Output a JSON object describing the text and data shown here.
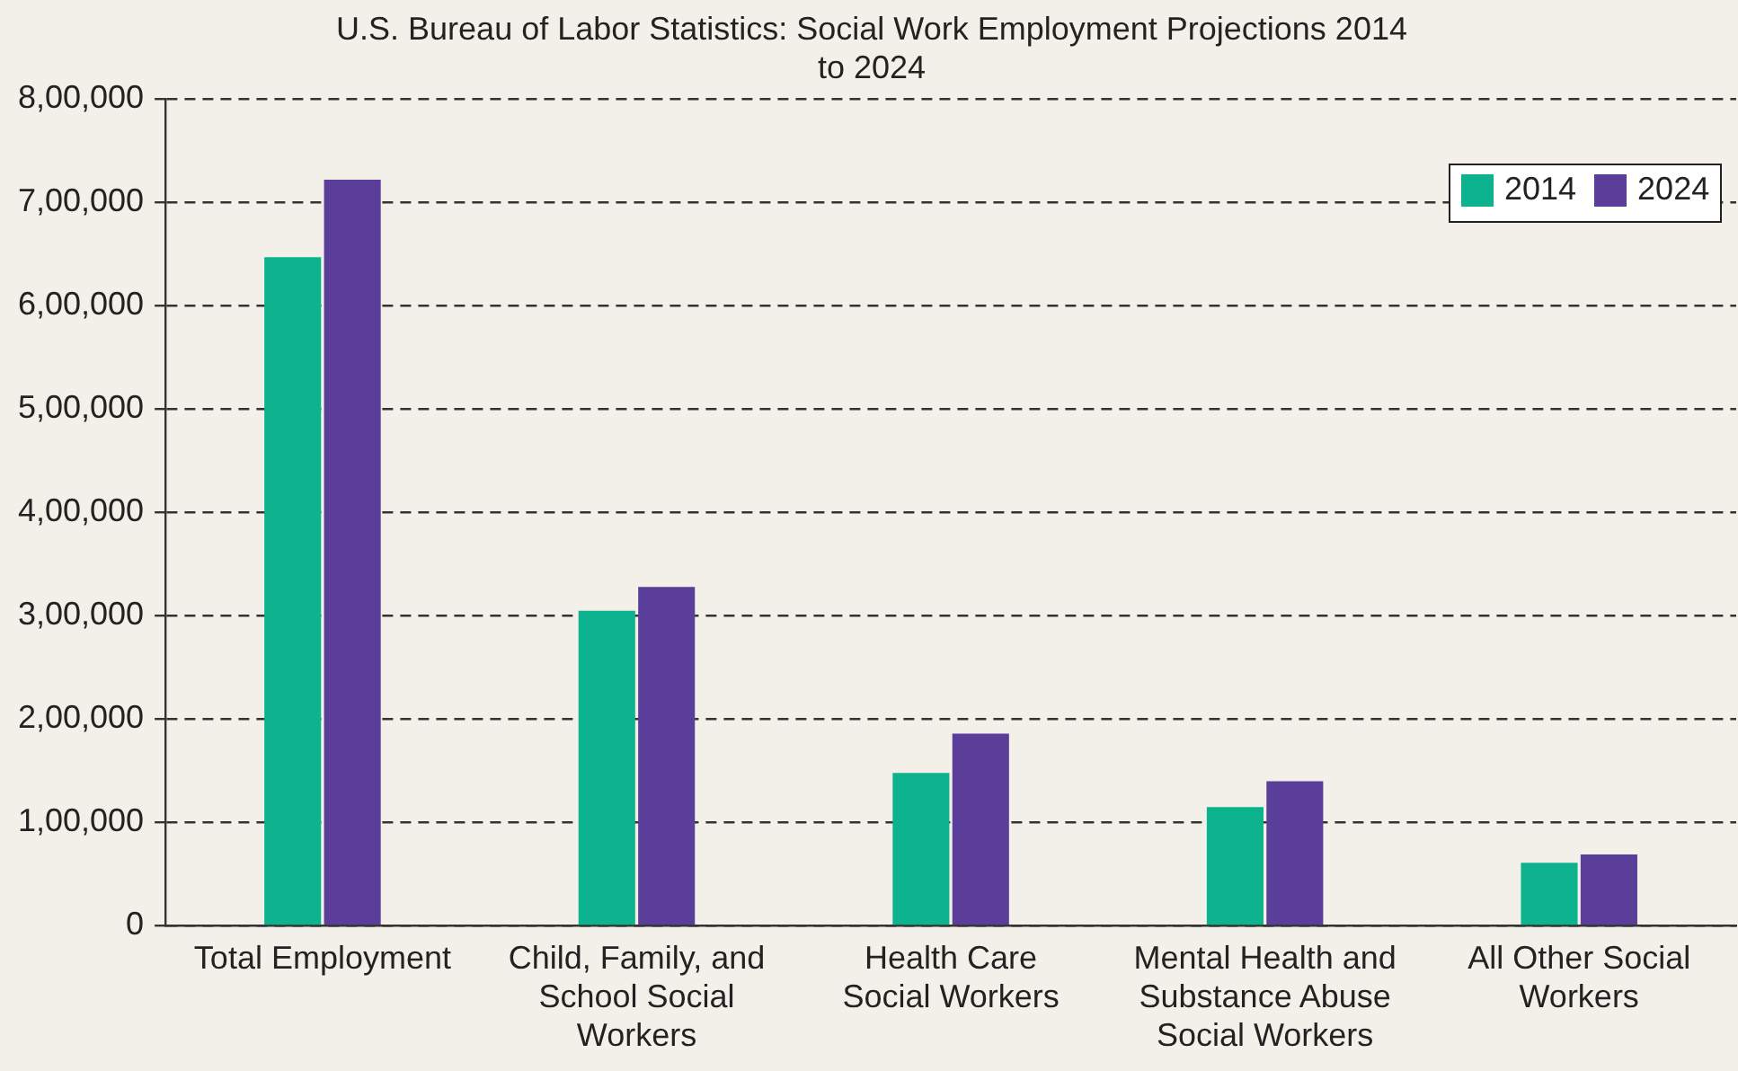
{
  "chart_data": {
    "type": "bar",
    "title": "U.S. Bureau of Labor Statistics: Social Work Employment Projections 2014 to 2024",
    "categories": [
      "Total Employment",
      "Child, Family, and School Social Workers",
      "Health Care Social Workers",
      "Mental Health and Substance Abuse Social Workers",
      "All Other Social Workers"
    ],
    "series": [
      {
        "name": "2014",
        "color": "#0db38e",
        "values": [
          647000,
          305000,
          148000,
          115000,
          61000
        ]
      },
      {
        "name": "2024",
        "color": "#5b3e99",
        "values": [
          722000,
          328000,
          186000,
          140000,
          69000
        ]
      }
    ],
    "ylim": [
      0,
      800000
    ],
    "yticks": [
      {
        "value": 0,
        "label": "0"
      },
      {
        "value": 100000,
        "label": "1,00,000"
      },
      {
        "value": 200000,
        "label": "2,00,000"
      },
      {
        "value": 300000,
        "label": "3,00,000"
      },
      {
        "value": 400000,
        "label": "4,00,000"
      },
      {
        "value": 500000,
        "label": "5,00,000"
      },
      {
        "value": 600000,
        "label": "6,00,000"
      },
      {
        "value": 700000,
        "label": "7,00,000"
      },
      {
        "value": 800000,
        "label": "8,00,000"
      }
    ],
    "grid": "y",
    "legend": "top right"
  }
}
